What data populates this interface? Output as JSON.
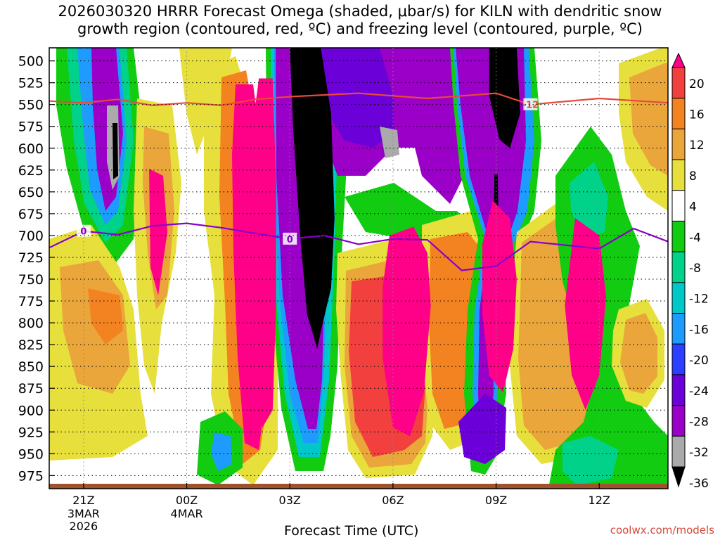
{
  "title": {
    "line1": "2026030320 HRRR Forecast Omega (shaded, μbar/s) for KILN with dendritic snow",
    "line2": "growth region (contoured, red, ºC) and freezing level (contoured, purple, ºC)"
  },
  "watermark": "coolwx.com/models",
  "colors": {
    "black": "#000000",
    "gray": "#aaaaaa",
    "purple": "#9b00c8",
    "violet": "#6b00d9",
    "blue": "#2a3fff",
    "sky": "#1e9bff",
    "cyan": "#00c8c8",
    "teal": "#00d28a",
    "green": "#11cc11",
    "yellow": "#e7df3c",
    "gold": "#eaa63a",
    "orange": "#f38220",
    "red": "#f2403f",
    "magenta": "#ff0088",
    "snow_line": "#e84a3a",
    "freeze_line": "#8800cc",
    "ground": "#a0522d"
  },
  "chart_data": {
    "type": "heatmap",
    "xlabel": "Forecast Time (UTC)",
    "x_ticks": [
      {
        "label": "21Z",
        "sub": [
          "3MAR",
          "2026"
        ],
        "hour": 0
      },
      {
        "label": "00Z",
        "sub": [
          "4MAR"
        ],
        "hour": 3
      },
      {
        "label": "03Z",
        "sub": [],
        "hour": 6
      },
      {
        "label": "06Z",
        "sub": [],
        "hour": 9
      },
      {
        "label": "09Z",
        "sub": [],
        "hour": 12
      },
      {
        "label": "12Z",
        "sub": [],
        "hour": 15
      }
    ],
    "xlim": [
      -1,
      17
    ],
    "y_ticks": [
      500,
      525,
      550,
      575,
      600,
      625,
      650,
      675,
      700,
      725,
      750,
      775,
      800,
      825,
      850,
      875,
      900,
      925,
      950,
      975
    ],
    "ylim": [
      485,
      990
    ],
    "colorbar": {
      "labels": [
        "20",
        "16",
        "12",
        "8",
        "4",
        "-4",
        "-8",
        "-12",
        "-16",
        "-20",
        "-24",
        "-28",
        "-32",
        "-36"
      ],
      "bins": [
        {
          "color": "#f2403f"
        },
        {
          "color": "#f38220"
        },
        {
          "color": "#eaa63a"
        },
        {
          "color": "#e7df3c"
        },
        {
          "color": "#ffffff"
        },
        {
          "color": "#11cc11"
        },
        {
          "color": "#00d28a"
        },
        {
          "color": "#00c8c8"
        },
        {
          "color": "#1e9bff"
        },
        {
          "color": "#2a3fff"
        },
        {
          "color": "#6b00d9"
        },
        {
          "color": "#9b00c8"
        },
        {
          "color": "#aaaaaa"
        }
      ],
      "top_color": "#ff0088",
      "bottom_color": "#000000"
    },
    "contours": {
      "snow_growth": {
        "label": "-12",
        "points": [
          [
            -1,
            546
          ],
          [
            0,
            548
          ],
          [
            1,
            544
          ],
          [
            2,
            551
          ],
          [
            3,
            548
          ],
          [
            4,
            551
          ],
          [
            5,
            544
          ],
          [
            6,
            541
          ],
          [
            8,
            537
          ],
          [
            10,
            543
          ],
          [
            12,
            537
          ],
          [
            13,
            550
          ],
          [
            15,
            543
          ],
          [
            17,
            548
          ]
        ]
      },
      "freezing_level": {
        "label": "0",
        "points": [
          [
            -1,
            714
          ],
          [
            0,
            695
          ],
          [
            1,
            699
          ],
          [
            2,
            689
          ],
          [
            3,
            686
          ],
          [
            4,
            691
          ],
          [
            6,
            704
          ],
          [
            7,
            700
          ],
          [
            8,
            710
          ],
          [
            9,
            704
          ],
          [
            10,
            705
          ],
          [
            11,
            740
          ],
          [
            12,
            735
          ],
          [
            13,
            707
          ],
          [
            15,
            715
          ],
          [
            16,
            692
          ],
          [
            17,
            707
          ]
        ]
      }
    },
    "regions": [
      {
        "name": "downdraft-core",
        "color": "#000000",
        "points": [
          [
            6.0,
            485
          ],
          [
            6.9,
            485
          ],
          [
            7.2,
            560
          ],
          [
            7.3,
            680
          ],
          [
            7.2,
            760
          ],
          [
            6.9,
            810
          ],
          [
            6.8,
            830
          ],
          [
            6.5,
            790
          ],
          [
            6.3,
            700
          ],
          [
            6.1,
            580
          ]
        ]
      },
      {
        "name": "downdraft-core-2",
        "color": "#000000",
        "points": [
          [
            11.8,
            485
          ],
          [
            12.6,
            485
          ],
          [
            12.7,
            560
          ],
          [
            12.4,
            600
          ],
          [
            12.1,
            590
          ],
          [
            11.8,
            540
          ]
        ]
      },
      {
        "name": "downdraft-streak",
        "color": "#000000",
        "points": [
          [
            11.95,
            630
          ],
          [
            12.05,
            630
          ],
          [
            12.1,
            760
          ],
          [
            12.05,
            850
          ],
          [
            11.95,
            850
          ],
          [
            11.9,
            760
          ]
        ]
      },
      {
        "name": "updraft-core-1",
        "color": "#ff0088",
        "points": [
          [
            8.9,
            700
          ],
          [
            9.6,
            690
          ],
          [
            10.0,
            720
          ],
          [
            10.1,
            780
          ],
          [
            9.9,
            880
          ],
          [
            9.5,
            930
          ],
          [
            9.0,
            920
          ],
          [
            8.7,
            840
          ],
          [
            8.7,
            760
          ]
        ]
      },
      {
        "name": "updraft-core-2",
        "color": "#ff0088",
        "points": [
          [
            11.9,
            660
          ],
          [
            12.4,
            680
          ],
          [
            12.6,
            750
          ],
          [
            12.5,
            830
          ],
          [
            12.2,
            880
          ],
          [
            11.8,
            860
          ],
          [
            11.6,
            790
          ],
          [
            11.6,
            710
          ]
        ]
      },
      {
        "name": "updraft-core-3",
        "color": "#ff0088",
        "points": [
          [
            14.3,
            680
          ],
          [
            15.0,
            700
          ],
          [
            15.2,
            770
          ],
          [
            15.0,
            860
          ],
          [
            14.6,
            900
          ],
          [
            14.2,
            860
          ],
          [
            14.0,
            780
          ]
        ]
      },
      {
        "name": "updraft-column",
        "color": "#ff0088",
        "points": [
          [
            5.1,
            520
          ],
          [
            5.5,
            520
          ],
          [
            5.6,
            640
          ],
          [
            5.6,
            780
          ],
          [
            5.5,
            900
          ],
          [
            5.2,
            920
          ],
          [
            5.0,
            820
          ],
          [
            4.9,
            680
          ],
          [
            4.9,
            580
          ]
        ]
      }
    ]
  }
}
